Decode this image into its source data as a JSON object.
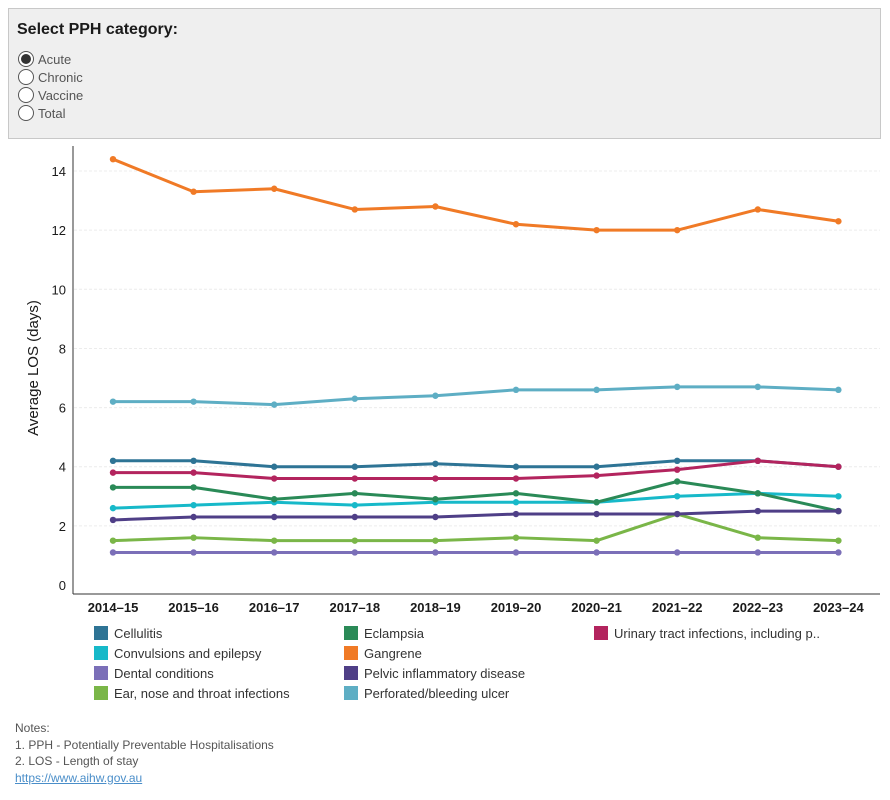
{
  "filter": {
    "title": "Select PPH category:",
    "options": [
      "Acute",
      "Chronic",
      "Vaccine",
      "Total"
    ],
    "selected": "Acute"
  },
  "chart_data": {
    "type": "line",
    "ylabel": "Average LOS (days)",
    "xlabel": "",
    "ylim": [
      0,
      15
    ],
    "y_ticks": [
      0,
      2,
      4,
      6,
      8,
      10,
      12,
      14
    ],
    "grid": true,
    "categories": [
      "2014–15",
      "2015–16",
      "2016–17",
      "2017–18",
      "2018–19",
      "2019–20",
      "2020–21",
      "2021–22",
      "2022–23",
      "2023–24"
    ],
    "series": [
      {
        "name": "Cellulitis",
        "color": "#2e7495",
        "values": [
          4.2,
          4.2,
          4.0,
          4.0,
          4.1,
          4.0,
          4.0,
          4.2,
          4.2,
          4.0
        ]
      },
      {
        "name": "Convulsions and epilepsy",
        "color": "#17b9c9",
        "values": [
          2.6,
          2.7,
          2.8,
          2.7,
          2.8,
          2.8,
          2.8,
          3.0,
          3.1,
          3.0
        ]
      },
      {
        "name": "Dental conditions",
        "color": "#7b6fb8",
        "values": [
          1.1,
          1.1,
          1.1,
          1.1,
          1.1,
          1.1,
          1.1,
          1.1,
          1.1,
          1.1
        ]
      },
      {
        "name": "Ear, nose and throat infections",
        "color": "#7ab648",
        "values": [
          1.5,
          1.6,
          1.5,
          1.5,
          1.5,
          1.6,
          1.5,
          2.4,
          1.6,
          1.5
        ]
      },
      {
        "name": "Eclampsia",
        "color": "#2a8a57",
        "values": [
          3.3,
          3.3,
          2.9,
          3.1,
          2.9,
          3.1,
          2.8,
          3.5,
          3.1,
          2.5
        ]
      },
      {
        "name": "Gangrene",
        "color": "#f07a26",
        "values": [
          14.4,
          13.3,
          13.4,
          12.7,
          12.8,
          12.2,
          12.0,
          12.0,
          12.7,
          12.3
        ]
      },
      {
        "name": "Pelvic inflammatory disease",
        "color": "#4f3f87",
        "values": [
          2.2,
          2.3,
          2.3,
          2.3,
          2.3,
          2.4,
          2.4,
          2.4,
          2.5,
          2.5
        ]
      },
      {
        "name": "Perforated/bleeding ulcer",
        "color": "#5eaec4",
        "values": [
          6.2,
          6.2,
          6.1,
          6.3,
          6.4,
          6.6,
          6.6,
          6.7,
          6.7,
          6.6
        ]
      },
      {
        "name": "Urinary tract infections, including p..",
        "color": "#b3245e",
        "values": [
          3.8,
          3.8,
          3.6,
          3.6,
          3.6,
          3.6,
          3.7,
          3.9,
          4.2,
          4.0
        ]
      }
    ]
  },
  "notes": {
    "heading": "Notes:",
    "line1": "1. PPH - Potentially Preventable Hospitalisations",
    "line2": "2. LOS - Length of stay",
    "link": "https://www.aihw.gov.au"
  }
}
